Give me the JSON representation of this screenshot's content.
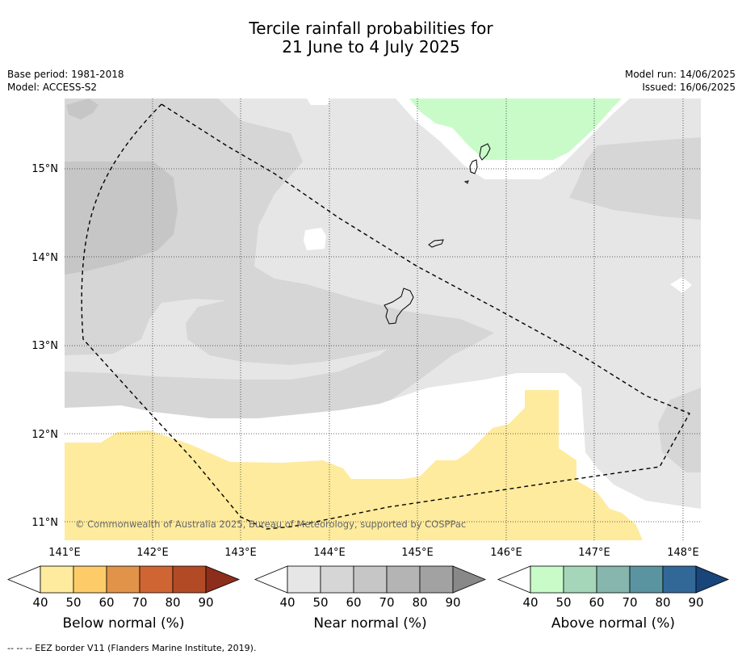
{
  "title": {
    "line1": "Tercile rainfall probabilities for",
    "line2": "21 June to 4 July 2025"
  },
  "meta": {
    "base_period": "Base period: 1981-2018",
    "model": "Model: ACCESS-S2",
    "model_run": "Model run: 14/06/2025",
    "issued": "Issued: 16/06/2025"
  },
  "map": {
    "lat_labels": [
      "15°N",
      "14°N",
      "13°N",
      "12°N",
      "11°N"
    ],
    "lon_labels": [
      "141°E",
      "142°E",
      "143°E",
      "144°E",
      "145°E",
      "146°E",
      "147°E",
      "148°E"
    ],
    "copyright": "© Commonwealth of Australia 2025, Bureau of Meteorology, supported by COSPPac",
    "colors": {
      "near_40": "#e6e6e6",
      "near_50": "#d6d6d6",
      "near_60": "#c6c6c6",
      "below_40": "#feeb9d",
      "above_40": "#c8fbc8",
      "background": "#ffffff"
    }
  },
  "legends": [
    {
      "label": "Below normal (%)",
      "ticks": [
        "40",
        "50",
        "60",
        "70",
        "80",
        "90"
      ],
      "colors": [
        "#feeb9d",
        "#fdcc68",
        "#e2934a",
        "#d06534",
        "#b24b25",
        "#8c2e1b"
      ]
    },
    {
      "label": "Near normal (%)",
      "ticks": [
        "40",
        "50",
        "60",
        "70",
        "80",
        "90"
      ],
      "colors": [
        "#e6e6e6",
        "#d6d6d6",
        "#c6c6c6",
        "#b4b4b4",
        "#a2a2a2",
        "#888888"
      ]
    },
    {
      "label": "Above normal (%)",
      "ticks": [
        "40",
        "50",
        "60",
        "70",
        "80",
        "90"
      ],
      "colors": [
        "#c8fbc8",
        "#a6d6b9",
        "#86b6ae",
        "#5a94a0",
        "#326898",
        "#18457a"
      ]
    }
  ],
  "footer": "--  --  -- EEZ border V11 (Flanders Marine Institute, 2019)."
}
